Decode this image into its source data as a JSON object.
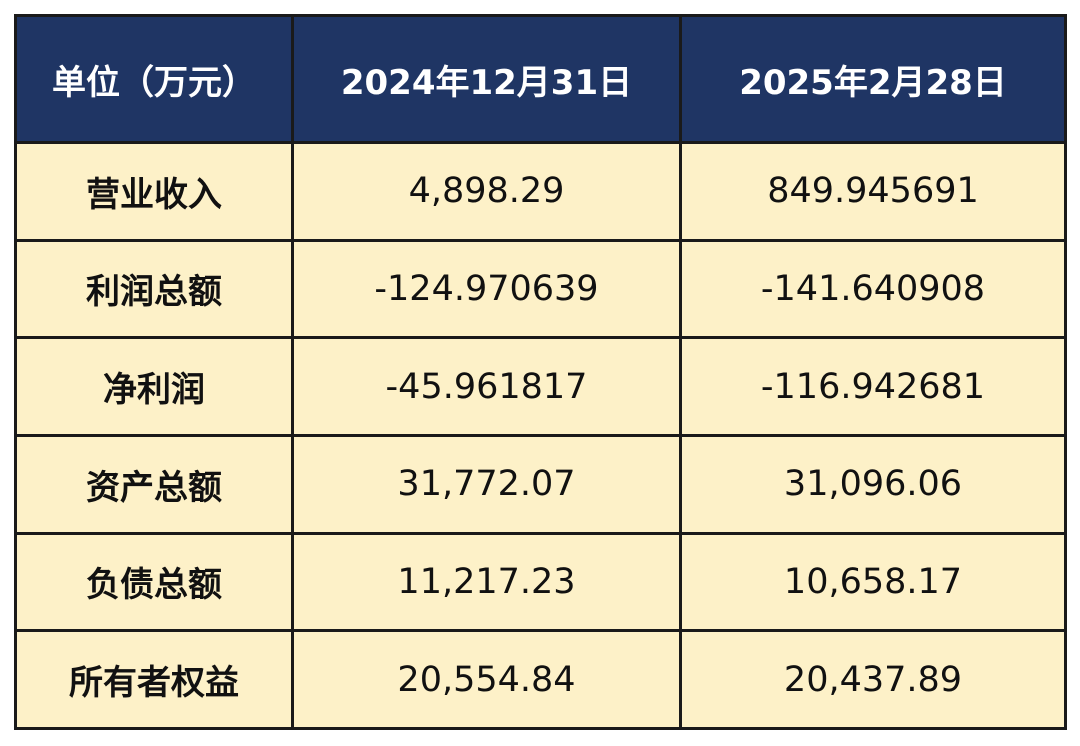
{
  "header": {
    "unit_label": "单位（万元）",
    "col1": "2024年12月31日",
    "col2": "2025年2月28日"
  },
  "rows": [
    {
      "label": "营业收入",
      "v1": "4,898.29",
      "v2": "849.945691"
    },
    {
      "label": "利润总额",
      "v1": "-124.970639",
      "v2": "-141.640908"
    },
    {
      "label": "净利润",
      "v1": "-45.961817",
      "v2": "-116.942681"
    },
    {
      "label": "资产总额",
      "v1": "31,772.07",
      "v2": "31,096.06"
    },
    {
      "label": "负债总额",
      "v1": "11,217.23",
      "v2": "10,658.17"
    },
    {
      "label": "所有者权益",
      "v1": "20,554.84",
      "v2": "20,437.89"
    }
  ],
  "colors": {
    "header_bg": "#1f3564",
    "header_text": "#ffffff",
    "cell_bg": "#fdf1c8",
    "border": "#1a1a1a"
  }
}
